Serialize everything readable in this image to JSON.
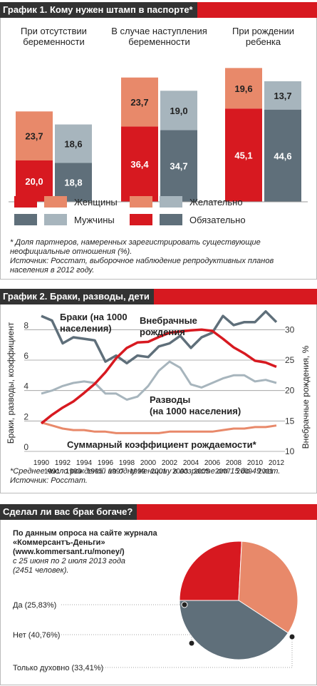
{
  "colors": {
    "dark_red": "#d71920",
    "light_red": "#e8896a",
    "dark_gray": "#5f6f7a",
    "light_gray": "#a7b5bd",
    "header_bg": "#333333",
    "pie_orange": "#e8896a"
  },
  "chart1": {
    "header": "График 1. Кому нужен штамп в паспорте*",
    "footnote_1": "* Доля партнеров, намеренных зарегистрировать существующие",
    "footnote_2": "неофициальные отношения (%).",
    "footnote_3": "Источник: Росстат, выборочное наблюдение репродуктивных планов",
    "footnote_4": "населения в 2012 году."
  },
  "chart2": {
    "header": "График 2. Браки, разводы, дети",
    "footnote_1": "*Среднее число рождений на одну женщину в возрасте от 15 до 49 лет.",
    "footnote_2": "Источник: Росстат."
  },
  "chart3": {
    "header": "Сделал ли вас брак богаче?",
    "intro_1": "По данным опроса на сайте журнала",
    "intro_2": "«Коммерсантъ-Деньги»",
    "intro_3": "(www.kommersant.ru/money/)",
    "intro_4": "с 25 июня по 2 июля 2013 года",
    "intro_5": "(2451 человек)."
  },
  "chart_data": [
    {
      "type": "bar",
      "title": "График 1. Кому нужен штамп в паспорте*",
      "categories": [
        [
          "При отсутствии",
          "беременности"
        ],
        [
          "В случае наступления",
          "беременности"
        ],
        [
          "При рождении",
          "ребенка"
        ]
      ],
      "series": [
        {
          "name": "Женщины: Обязательно",
          "group": "women",
          "part": "required",
          "values": [
            20.0,
            36.4,
            45.1
          ]
        },
        {
          "name": "Женщины: Желательно",
          "group": "women",
          "part": "desired",
          "values": [
            23.7,
            23.7,
            19.6
          ]
        },
        {
          "name": "Мужчины: Обязательно",
          "group": "men",
          "part": "required",
          "values": [
            18.8,
            34.7,
            44.6
          ]
        },
        {
          "name": "Мужчины: Желательно",
          "group": "men",
          "part": "desired",
          "values": [
            18.6,
            19.0,
            13.7
          ]
        }
      ],
      "value_labels": {
        "women_required": [
          "20,0",
          "36,4",
          "45,1"
        ],
        "women_desired": [
          "23,7",
          "23,7",
          "19,6"
        ],
        "men_required": [
          "18,8",
          "34,7",
          "44,6"
        ],
        "men_desired": [
          "18,6",
          "19,0",
          "13,7"
        ]
      },
      "legend": {
        "women": "Женщины",
        "men": "Мужчины",
        "desired": "Желательно",
        "required": "Обязательно"
      },
      "ylim": [
        0,
        70
      ],
      "grid": false
    },
    {
      "type": "line",
      "title": "График 2. Браки, разводы, дети",
      "x": [
        1990,
        1991,
        1992,
        1993,
        1994,
        1995,
        1996,
        1997,
        1998,
        1999,
        2000,
        2001,
        2002,
        2003,
        2004,
        2005,
        2006,
        2007,
        2008,
        2009,
        2010,
        2011,
        2012
      ],
      "x_labels_top": [
        "1990",
        "1992",
        "1994",
        "1996",
        "1998",
        "2000",
        "2002",
        "2004",
        "2006",
        "2008",
        "2010",
        "2012"
      ],
      "x_labels_bottom": [
        "1991",
        "1993",
        "1995",
        "1997",
        "1999",
        "2001",
        "2003",
        "2005",
        "2007",
        "2009",
        "2011"
      ],
      "ylabel_left": "Браки, разводы, коэффициент",
      "ylabel_right": "Внебрачные рождения, %",
      "ylim_left": [
        0,
        9
      ],
      "yticks_left": [
        0,
        2,
        4,
        6,
        8
      ],
      "ylim_right": [
        10,
        32.5
      ],
      "yticks_right": [
        10,
        15,
        20,
        25,
        30
      ],
      "grid": true,
      "series": [
        {
          "name": "Браки (на 1000 населения)",
          "label_1": "Браки (на 1000",
          "label_2": "населения)",
          "axis": "left",
          "color": "#5f6f7a",
          "values": [
            8.9,
            8.6,
            7.1,
            7.5,
            7.4,
            7.3,
            5.9,
            6.3,
            5.8,
            6.3,
            6.2,
            6.9,
            7.1,
            7.6,
            6.8,
            7.5,
            7.8,
            8.9,
            8.3,
            8.5,
            8.5,
            9.2,
            8.5
          ]
        },
        {
          "name": "Внебрачные рождения",
          "label_1": "Внебрачные",
          "label_2": "рождения",
          "axis": "right",
          "color": "#d71920",
          "values": [
            14.6,
            16.0,
            17.2,
            18.2,
            19.6,
            21.1,
            23.0,
            25.3,
            27.0,
            27.9,
            28.0,
            28.8,
            29.5,
            29.7,
            29.9,
            30.0,
            29.8,
            28.5,
            27.1,
            26.1,
            24.9,
            24.6,
            23.9
          ]
        },
        {
          "name": "Разводы (на 1000 населения)",
          "label_1": "Разводы",
          "label_2": "(на 1000 населения)",
          "axis": "left",
          "color": "#a7b5bd",
          "values": [
            3.8,
            4.0,
            4.3,
            4.5,
            4.6,
            4.5,
            3.8,
            3.8,
            3.4,
            3.6,
            4.3,
            5.3,
            5.9,
            5.5,
            4.4,
            4.2,
            4.5,
            4.8,
            5.0,
            5.0,
            4.6,
            4.7,
            4.5
          ]
        },
        {
          "name": "Суммарный коэффициент рождаемости*",
          "label_1": "Суммарный коэффициент рождаемости*",
          "axis": "left",
          "color": "#e8896a",
          "values": [
            1.9,
            1.7,
            1.5,
            1.4,
            1.4,
            1.3,
            1.3,
            1.2,
            1.2,
            1.2,
            1.2,
            1.2,
            1.3,
            1.3,
            1.3,
            1.3,
            1.3,
            1.4,
            1.5,
            1.5,
            1.6,
            1.6,
            1.7
          ]
        }
      ]
    },
    {
      "type": "pie",
      "title": "Сделал ли вас брак богаче?",
      "categories": [
        "Да (25,83%)",
        "Нет (40,76%)",
        "Только духовно (33,41%)"
      ],
      "values": [
        25.83,
        40.76,
        33.41
      ],
      "colors": [
        "#d71920",
        "#5f6f7a",
        "#e8896a"
      ]
    }
  ]
}
